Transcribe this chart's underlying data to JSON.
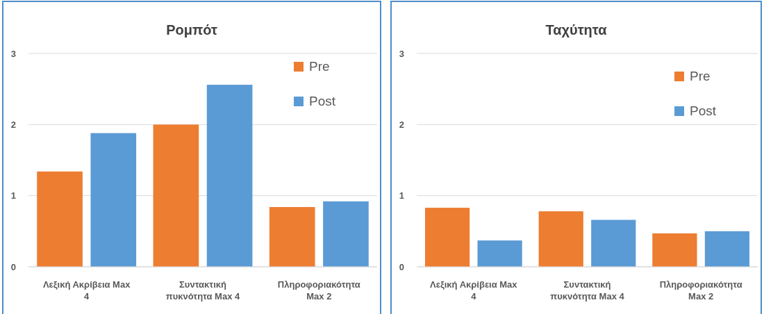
{
  "chart_data": [
    {
      "type": "bar",
      "title": "Ρομπότ",
      "categories": [
        "Λεξική Ακρίβεια Max 4",
        "Συντακτική πυκνότητα Max 4",
        "Πληροφοριακότητα Max 2"
      ],
      "series": [
        {
          "name": "Pre",
          "color": "#ed7d31",
          "values": [
            1.34,
            2.0,
            0.84
          ]
        },
        {
          "name": "Post",
          "color": "#5b9bd5",
          "values": [
            1.88,
            2.56,
            0.92
          ]
        }
      ],
      "ylim": [
        0,
        3
      ],
      "yticks": [
        0,
        1,
        2,
        3
      ],
      "grid": "y",
      "legend": "top right"
    },
    {
      "type": "bar",
      "title": "Ταχύτητα",
      "categories": [
        "Λεξική Ακρίβεια Max 4",
        "Συντακτική πυκνότητα Max 4",
        "Πληροφοριακότητα Max 2"
      ],
      "series": [
        {
          "name": "Pre",
          "color": "#ed7d31",
          "values": [
            0.83,
            0.78,
            0.47
          ]
        },
        {
          "name": "Post",
          "color": "#5b9bd5",
          "values": [
            0.37,
            0.66,
            0.5
          ]
        }
      ],
      "ylim": [
        0,
        3
      ],
      "yticks": [
        0,
        1,
        2,
        3
      ],
      "grid": "y",
      "legend": "top right"
    }
  ]
}
